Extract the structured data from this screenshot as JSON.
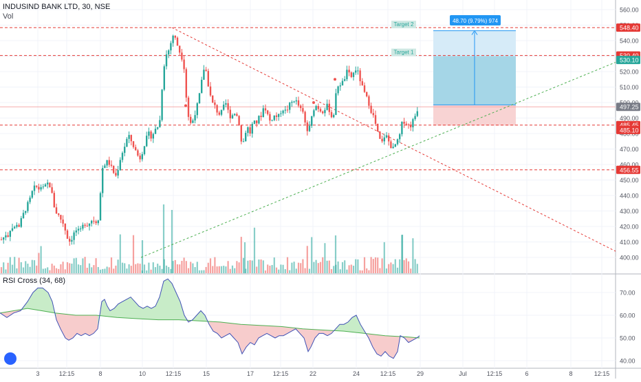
{
  "header": {
    "title": "INDUSIND BANK LTD, 30, NSE",
    "volume_label": "Vol",
    "rsi_label": "RSI Cross (34, 68)"
  },
  "colors": {
    "up": "#26a69a",
    "down": "#ef5350",
    "level_line": "#e53935",
    "trend_down": "#e53935",
    "trend_up": "#4caf50",
    "rsi_fast": "#3f51b5",
    "rsi_slow": "#4caf50",
    "target_fill": "#a5d6e7",
    "target_fill_light": "#d6ebf8",
    "stop_fill": "#f8d3d3",
    "current_price_bg": "#787b86",
    "green_price_bg": "#26a69a",
    "blue_tag": "#2196f3"
  },
  "annotations": {
    "target1": "Target 1",
    "target2": "Target 2",
    "measure": "48.70 (9.79%) 974"
  },
  "chart_data": [
    {
      "type": "candlestick",
      "title": "INDUSIND BANK LTD, 30, NSE",
      "y_axis_labels": [
        "560.00",
        "550.00",
        "540.00",
        "530.00",
        "520.00",
        "510.00",
        "500.00",
        "490.00",
        "480.00",
        "470.00",
        "460.00",
        "450.00",
        "440.00",
        "430.00",
        "420.00",
        "410.00",
        "400.00"
      ],
      "ylim": [
        395,
        563
      ],
      "x_tick_labels": [
        "3",
        "12:15",
        "8",
        "10",
        "12:15",
        "15",
        "17",
        "12:15",
        "22",
        "24",
        "12:15",
        "29",
        "Jul",
        "12:15",
        "6",
        "8",
        "12:15"
      ],
      "price_tags": [
        {
          "value": "548.40",
          "kind": "level"
        },
        {
          "value": "530.40",
          "kind": "level"
        },
        {
          "value": "530.10",
          "kind": "green"
        },
        {
          "value": "497.25",
          "kind": "current"
        },
        {
          "value": "485.45",
          "kind": "level"
        },
        {
          "value": "485.10",
          "kind": "level"
        },
        {
          "value": "456.55",
          "kind": "level"
        }
      ],
      "horizontal_levels": [
        548.4,
        530.4,
        485.45,
        456.55
      ],
      "position_tool": {
        "entry": 498.5,
        "target": 546.4,
        "stop": 485.1
      },
      "close_path": [
        [
          0,
          411
        ],
        [
          4,
          412
        ],
        [
          8,
          415
        ],
        [
          12,
          414
        ],
        [
          16,
          420
        ],
        [
          20,
          418
        ],
        [
          24,
          422
        ],
        [
          28,
          420
        ],
        [
          32,
          426
        ],
        [
          36,
          430
        ],
        [
          40,
          434
        ],
        [
          44,
          438
        ],
        [
          48,
          444
        ],
        [
          52,
          446
        ],
        [
          56,
          444
        ],
        [
          60,
          446
        ],
        [
          64,
          444
        ],
        [
          68,
          448
        ],
        [
          72,
          447
        ],
        [
          76,
          440
        ],
        [
          80,
          430
        ],
        [
          84,
          428
        ],
        [
          88,
          425
        ],
        [
          92,
          422
        ],
        [
          96,
          416
        ],
        [
          100,
          410
        ],
        [
          104,
          412
        ],
        [
          108,
          416
        ],
        [
          112,
          418
        ],
        [
          116,
          416
        ],
        [
          120,
          420
        ],
        [
          124,
          422
        ],
        [
          128,
          421
        ],
        [
          132,
          424
        ],
        [
          136,
          424
        ],
        [
          140,
          423
        ],
        [
          144,
          426
        ],
        [
          148,
          457
        ],
        [
          152,
          460
        ],
        [
          156,
          462
        ],
        [
          160,
          460
        ],
        [
          164,
          456
        ],
        [
          168,
          452
        ],
        [
          172,
          458
        ],
        [
          176,
          466
        ],
        [
          180,
          470
        ],
        [
          184,
          476
        ],
        [
          188,
          478
        ],
        [
          192,
          474
        ],
        [
          196,
          470
        ],
        [
          200,
          466
        ],
        [
          204,
          464
        ],
        [
          208,
          470
        ],
        [
          212,
          476
        ],
        [
          216,
          480
        ],
        [
          220,
          478
        ],
        [
          224,
          481
        ],
        [
          228,
          484
        ],
        [
          232,
          486
        ],
        [
          236,
          512
        ],
        [
          240,
          530
        ],
        [
          244,
          532
        ],
        [
          248,
          538
        ],
        [
          252,
          544
        ],
        [
          256,
          540
        ],
        [
          260,
          534
        ],
        [
          264,
          530
        ],
        [
          268,
          522
        ],
        [
          272,
          496
        ],
        [
          276,
          486
        ],
        [
          280,
          488
        ],
        [
          284,
          494
        ],
        [
          288,
          500
        ],
        [
          292,
          510
        ],
        [
          296,
          522
        ],
        [
          300,
          520
        ],
        [
          304,
          508
        ],
        [
          308,
          500
        ],
        [
          312,
          498
        ],
        [
          316,
          494
        ],
        [
          320,
          492
        ],
        [
          324,
          496
        ],
        [
          328,
          500
        ],
        [
          332,
          494
        ],
        [
          336,
          490
        ],
        [
          340,
          494
        ],
        [
          344,
          492
        ],
        [
          348,
          486
        ],
        [
          352,
          470
        ],
        [
          356,
          480
        ],
        [
          360,
          484
        ],
        [
          364,
          480
        ],
        [
          368,
          488
        ],
        [
          372,
          486
        ],
        [
          376,
          490
        ],
        [
          380,
          492
        ],
        [
          384,
          498
        ],
        [
          388,
          494
        ],
        [
          392,
          488
        ],
        [
          396,
          490
        ],
        [
          400,
          492
        ],
        [
          404,
          490
        ],
        [
          408,
          494
        ],
        [
          412,
          496
        ],
        [
          416,
          494
        ],
        [
          420,
          498
        ],
        [
          424,
          500
        ],
        [
          428,
          502
        ],
        [
          432,
          500
        ],
        [
          436,
          496
        ],
        [
          440,
          494
        ],
        [
          444,
          486
        ],
        [
          448,
          480
        ],
        [
          452,
          488
        ],
        [
          456,
          496
        ],
        [
          460,
          498
        ],
        [
          464,
          496
        ],
        [
          468,
          494
        ],
        [
          472,
          496
        ],
        [
          476,
          498
        ],
        [
          480,
          494
        ],
        [
          484,
          488
        ],
        [
          488,
          504
        ],
        [
          492,
          512
        ],
        [
          496,
          512
        ],
        [
          500,
          514
        ],
        [
          504,
          520
        ],
        [
          508,
          518
        ],
        [
          512,
          516
        ],
        [
          516,
          522
        ],
        [
          520,
          520
        ],
        [
          524,
          514
        ],
        [
          528,
          508
        ],
        [
          532,
          504
        ],
        [
          536,
          500
        ],
        [
          540,
          494
        ],
        [
          544,
          490
        ],
        [
          548,
          482
        ],
        [
          552,
          476
        ],
        [
          556,
          474
        ],
        [
          560,
          480
        ],
        [
          564,
          476
        ],
        [
          568,
          472
        ],
        [
          572,
          470
        ],
        [
          576,
          474
        ],
        [
          580,
          476
        ],
        [
          584,
          486
        ],
        [
          588,
          488
        ],
        [
          592,
          486
        ],
        [
          596,
          484
        ],
        [
          600,
          488
        ],
        [
          604,
          492
        ],
        [
          608,
          497
        ]
      ]
    },
    {
      "type": "line",
      "title": "RSI Cross (34, 68)",
      "y_axis_labels": [
        "70.00",
        "60.00",
        "50.00",
        "40.00"
      ],
      "ylim": [
        37,
        78
      ],
      "series": [
        {
          "name": "fast",
          "values": [
            [
              0,
              61
            ],
            [
              10,
              59
            ],
            [
              20,
              61
            ],
            [
              30,
              62
            ],
            [
              40,
              66
            ],
            [
              48,
              70
            ],
            [
              55,
              72
            ],
            [
              62,
              72
            ],
            [
              70,
              70
            ],
            [
              76,
              66
            ],
            [
              82,
              58
            ],
            [
              88,
              54
            ],
            [
              95,
              50
            ],
            [
              100,
              49
            ],
            [
              106,
              50
            ],
            [
              112,
              52
            ],
            [
              118,
              51
            ],
            [
              124,
              52
            ],
            [
              130,
              51
            ],
            [
              136,
              52
            ],
            [
              142,
              54
            ],
            [
              148,
              66
            ],
            [
              152,
              67
            ],
            [
              156,
              64
            ],
            [
              160,
              62
            ],
            [
              166,
              63
            ],
            [
              172,
              65
            ],
            [
              178,
              66
            ],
            [
              184,
              67
            ],
            [
              190,
              68
            ],
            [
              196,
              66
            ],
            [
              202,
              64
            ],
            [
              208,
              63
            ],
            [
              214,
              64
            ],
            [
              220,
              63
            ],
            [
              226,
              64
            ],
            [
              232,
              68
            ],
            [
              238,
              75
            ],
            [
              244,
              76
            ],
            [
              250,
              74
            ],
            [
              256,
              70
            ],
            [
              262,
              66
            ],
            [
              268,
              60
            ],
            [
              274,
              57
            ],
            [
              280,
              58
            ],
            [
              286,
              60
            ],
            [
              292,
              62
            ],
            [
              298,
              60
            ],
            [
              304,
              56
            ],
            [
              310,
              53
            ],
            [
              316,
              52
            ],
            [
              322,
              50
            ],
            [
              328,
              51
            ],
            [
              334,
              52
            ],
            [
              340,
              50
            ],
            [
              346,
              48
            ],
            [
              352,
              43
            ],
            [
              358,
              46
            ],
            [
              364,
              48
            ],
            [
              370,
              47
            ],
            [
              376,
              50
            ],
            [
              382,
              51
            ],
            [
              388,
              52
            ],
            [
              394,
              51
            ],
            [
              400,
              50
            ],
            [
              406,
              51
            ],
            [
              412,
              51
            ],
            [
              418,
              52
            ],
            [
              424,
              53
            ],
            [
              430,
              54
            ],
            [
              436,
              52
            ],
            [
              442,
              50
            ],
            [
              448,
              44
            ],
            [
              452,
              46
            ],
            [
              458,
              50
            ],
            [
              464,
              52
            ],
            [
              470,
              52
            ],
            [
              476,
              51
            ],
            [
              482,
              52
            ],
            [
              488,
              54
            ],
            [
              494,
              56
            ],
            [
              500,
              56
            ],
            [
              506,
              57
            ],
            [
              512,
              59
            ],
            [
              518,
              60
            ],
            [
              524,
              56
            ],
            [
              530,
              53
            ],
            [
              536,
              50
            ],
            [
              542,
              46
            ],
            [
              548,
              43
            ],
            [
              554,
              42
            ],
            [
              560,
              44
            ],
            [
              566,
              42
            ],
            [
              572,
              41
            ],
            [
              578,
              44
            ],
            [
              582,
              51
            ],
            [
              588,
              50
            ],
            [
              594,
              48
            ],
            [
              600,
              49
            ],
            [
              606,
              50
            ],
            [
              610,
              51
            ]
          ]
        },
        {
          "name": "slow",
          "values": [
            [
              0,
              61
            ],
            [
              40,
              63
            ],
            [
              60,
              62
            ],
            [
              80,
              61
            ],
            [
              110,
              60
            ],
            [
              140,
              60
            ],
            [
              170,
              59
            ],
            [
              200,
              58.5
            ],
            [
              230,
              58
            ],
            [
              260,
              58
            ],
            [
              290,
              57.5
            ],
            [
              320,
              57
            ],
            [
              350,
              56
            ],
            [
              380,
              55.5
            ],
            [
              410,
              55
            ],
            [
              440,
              54
            ],
            [
              470,
              53.5
            ],
            [
              500,
              53
            ],
            [
              530,
              52
            ],
            [
              560,
              51
            ],
            [
              590,
              50.5
            ],
            [
              610,
              50
            ]
          ]
        }
      ]
    }
  ]
}
